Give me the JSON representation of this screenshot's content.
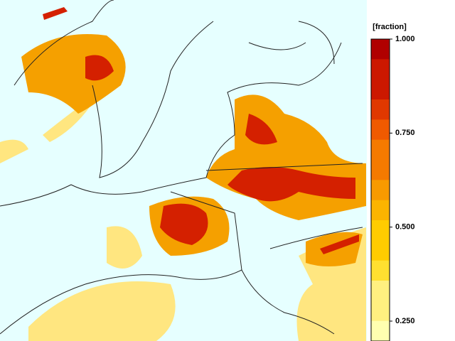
{
  "colorbar": {
    "title": "[fraction]",
    "ticks": [
      {
        "value": 1,
        "label": "1.000"
      },
      {
        "value": 0.75,
        "label": "0.750"
      },
      {
        "value": 0.5,
        "label": "0.500"
      },
      {
        "value": 0.25,
        "label": "0.250"
      }
    ],
    "colors": [
      "#b00000",
      "#cc1800",
      "#cc1800",
      "#e03800",
      "#f05a00",
      "#f57a00",
      "#f57a00",
      "#f89a00",
      "#fbb400",
      "#ffcc00",
      "#ffcc00",
      "#ffe030",
      "#fff080",
      "#fff080",
      "#ffffb0"
    ]
  }
}
